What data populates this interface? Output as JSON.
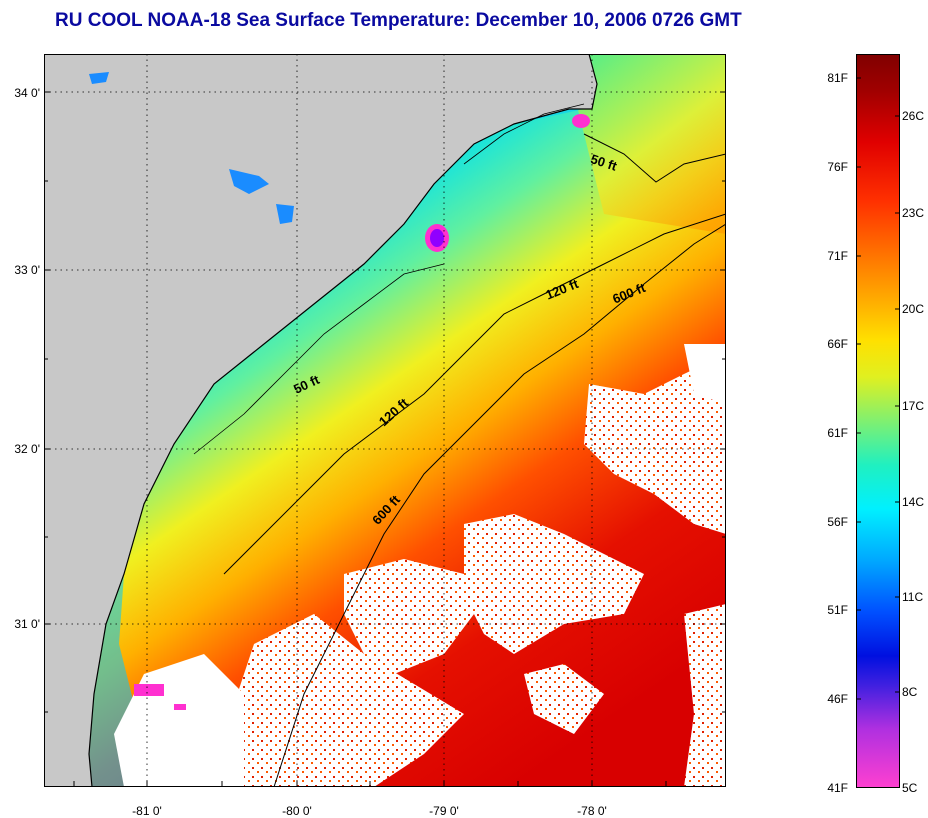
{
  "title": "RU COOL  NOAA-18  Sea Surface Temperature:  December 10, 2006 0726 GMT",
  "map": {
    "lat_labels": [
      "34 0'",
      "33 0'",
      "32 0'",
      "31 0'"
    ],
    "lon_labels": [
      "-81 0'",
      "-80 0'",
      "-79 0'",
      "-78 0'"
    ],
    "contour_labels": [
      "50 ft",
      "120 ft",
      "600 ft",
      "50 ft",
      "120 ft",
      "600 ft"
    ]
  },
  "colorbar": {
    "fahrenheit_labels": [
      "81F",
      "76F",
      "71F",
      "66F",
      "61F",
      "56F",
      "51F",
      "46F",
      "41F"
    ],
    "celsius_labels": [
      "26C",
      "23C",
      "20C",
      "17C",
      "14C",
      "11C",
      "8C",
      "5C"
    ]
  },
  "colors": {
    "title": "#0a0aa0",
    "land": "#c8c8c8",
    "cloud": "#ffffff"
  }
}
